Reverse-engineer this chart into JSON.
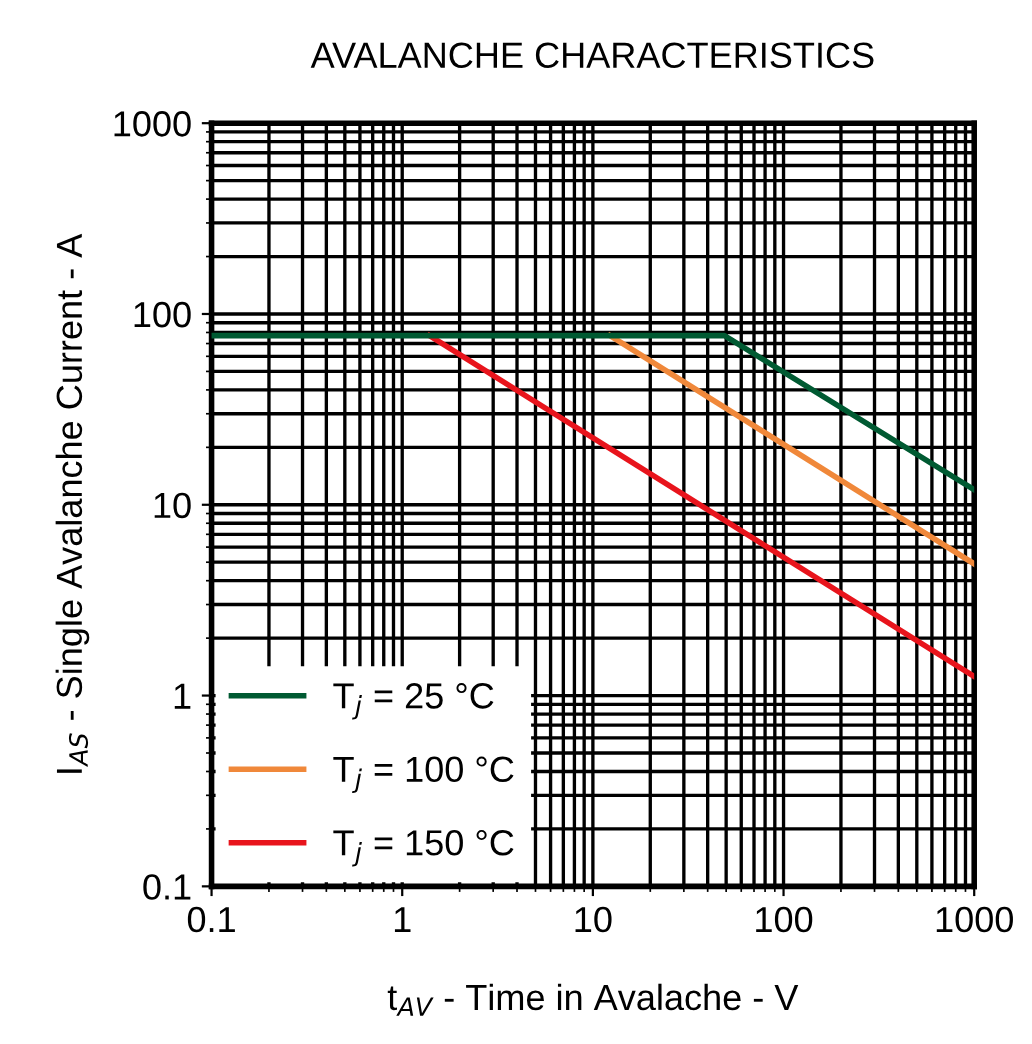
{
  "chart_data": {
    "type": "line",
    "title": "AVALANCHE CHARACTERISTICS",
    "xlabel": "t$_{AV}$ - Time in Avalache - V",
    "ylabel": "I$_{AS}$ - Single Avalanche Current - A",
    "log": "xy",
    "xlim": [
      0.1,
      1000
    ],
    "ylim": [
      0.1,
      1000
    ],
    "xticks": [
      0.1,
      1,
      10,
      100,
      1000
    ],
    "yticks": [
      0.1,
      1,
      10,
      100,
      1000
    ],
    "grid": true,
    "legend": "bottom left",
    "line_style": "solid",
    "marker": "none",
    "series": [
      {
        "name": "T$_{j}$ = 25 °C",
        "color": "#005a32",
        "x": [
          0.1,
          49,
          1000
        ],
        "values": [
          77,
          77,
          12
        ]
      },
      {
        "name": "T$_{j}$ = 100 °C",
        "color": "#f0883a",
        "x": [
          12.3,
          1000
        ],
        "values": [
          77,
          4.9
        ]
      },
      {
        "name": "T$_{j}$ = 150 °C",
        "color": "#e8141c",
        "x": [
          1.39,
          1000
        ],
        "values": [
          77,
          1.26
        ]
      }
    ]
  }
}
